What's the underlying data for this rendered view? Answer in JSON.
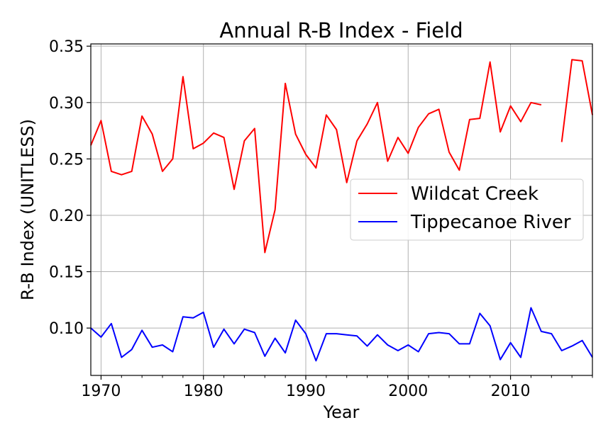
{
  "chart_data": {
    "type": "line",
    "title": "Annual R-B Index - Field",
    "xlabel": "Year",
    "ylabel": "R-B Index (UNITLESS)",
    "xlim": [
      1969,
      2018
    ],
    "ylim": [
      0.058,
      0.352
    ],
    "x_ticks": [
      1970,
      1980,
      1990,
      2000,
      2010
    ],
    "y_ticks": [
      0.1,
      0.15,
      0.2,
      0.25,
      0.3,
      0.35
    ],
    "y_tick_labels": [
      "0.10",
      "0.15",
      "0.20",
      "0.25",
      "0.30",
      "0.35"
    ],
    "grid": true,
    "legend_position": "center-right",
    "series": [
      {
        "name": "Wildcat Creek",
        "color": "#ff0000",
        "x": [
          1969,
          1970,
          1971,
          1972,
          1973,
          1974,
          1975,
          1976,
          1977,
          1978,
          1979,
          1980,
          1981,
          1982,
          1983,
          1984,
          1985,
          1986,
          1987,
          1988,
          1989,
          1990,
          1991,
          1992,
          1993,
          1994,
          1995,
          1996,
          1997,
          1998,
          1999,
          2000,
          2001,
          2002,
          2003,
          2004,
          2005,
          2006,
          2007,
          2008,
          2009,
          2010,
          2011,
          2012,
          2013,
          2014,
          2015,
          2016,
          2017,
          2018
        ],
        "values": [
          0.262,
          0.284,
          0.239,
          0.236,
          0.239,
          0.288,
          0.272,
          0.239,
          0.25,
          0.323,
          0.259,
          0.264,
          0.273,
          0.269,
          0.223,
          0.266,
          0.277,
          0.167,
          0.205,
          0.317,
          0.272,
          0.254,
          0.242,
          0.289,
          0.276,
          0.229,
          0.266,
          0.281,
          0.3,
          0.248,
          0.269,
          0.255,
          0.278,
          0.29,
          0.294,
          0.256,
          0.24,
          0.285,
          0.286,
          0.336,
          0.274,
          0.297,
          0.283,
          0.3,
          0.298,
          null,
          0.265,
          0.338,
          0.337,
          0.289
        ]
      },
      {
        "name": "Tippecanoe River",
        "color": "#0000ff",
        "x": [
          1969,
          1970,
          1971,
          1972,
          1973,
          1974,
          1975,
          1976,
          1977,
          1978,
          1979,
          1980,
          1981,
          1982,
          1983,
          1984,
          1985,
          1986,
          1987,
          1988,
          1989,
          1990,
          1991,
          1992,
          1993,
          1994,
          1995,
          1996,
          1997,
          1998,
          1999,
          2000,
          2001,
          2002,
          2003,
          2004,
          2005,
          2006,
          2007,
          2008,
          2009,
          2010,
          2011,
          2012,
          2013,
          2014,
          2015,
          2016,
          2017,
          2018
        ],
        "values": [
          0.1,
          0.092,
          0.104,
          0.074,
          0.081,
          0.098,
          0.083,
          0.085,
          0.079,
          0.11,
          0.109,
          0.114,
          0.083,
          0.099,
          0.086,
          0.099,
          0.096,
          0.075,
          0.091,
          0.078,
          0.107,
          0.095,
          0.071,
          0.095,
          0.095,
          0.094,
          0.093,
          0.084,
          0.094,
          0.085,
          0.08,
          0.085,
          0.079,
          0.095,
          0.096,
          0.095,
          0.086,
          0.086,
          0.113,
          0.102,
          0.072,
          0.087,
          0.074,
          0.118,
          0.097,
          0.095,
          0.08,
          0.084,
          0.089,
          0.074
        ]
      }
    ]
  }
}
